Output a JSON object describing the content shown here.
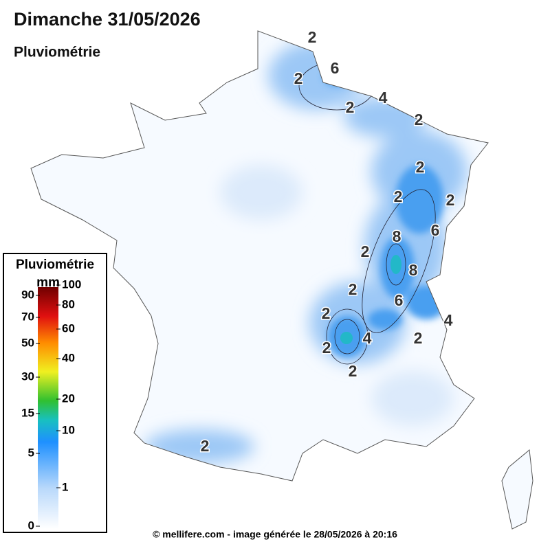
{
  "header": {
    "title": "Dimanche 31/05/2026",
    "subtitle": "Pluviométrie"
  },
  "map": {
    "contour_labels": [
      2,
      6,
      2,
      2,
      4,
      2,
      2,
      2,
      2,
      8,
      6,
      2,
      8,
      2,
      6,
      2,
      4,
      4,
      2,
      2,
      2,
      2
    ]
  },
  "legend": {
    "title": "Pluviométrie",
    "unit": "mm",
    "left_ticks": [
      90,
      70,
      50,
      30,
      15,
      5,
      0
    ],
    "right_ticks": [
      100,
      80,
      60,
      40,
      20,
      10,
      1
    ]
  },
  "footer": "© mellifere.com - image générée le 28/05/2026 à 20:16"
}
